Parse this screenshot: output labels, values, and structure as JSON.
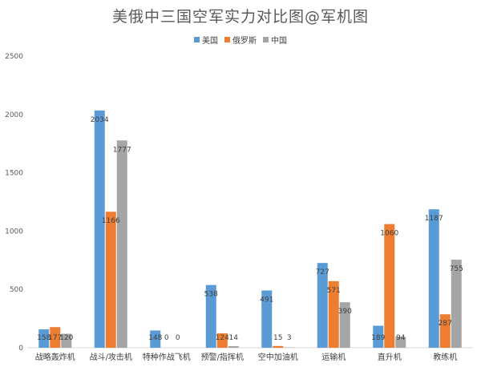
{
  "chart_data": {
    "type": "bar",
    "title": "美俄中三国空军实力对比图@军机图",
    "categories": [
      "战略轰炸机",
      "战斗/攻击机",
      "特种作战飞机",
      "预警/指挥机",
      "空中加油机",
      "运输机",
      "直升机",
      "教练机"
    ],
    "series": [
      {
        "name": "美国",
        "color": "#5b9bd5",
        "values": [
          158,
          2034,
          148,
          538,
          491,
          727,
          189,
          1187
        ]
      },
      {
        "name": "俄罗斯",
        "color": "#ed7d31",
        "values": [
          177,
          1166,
          0,
          124,
          15,
          571,
          1060,
          287
        ]
      },
      {
        "name": "中国",
        "color": "#a5a5a5",
        "values": [
          120,
          1777,
          0,
          14,
          3,
          390,
          94,
          755
        ]
      }
    ],
    "yticks": [
      "0",
      "500",
      "1000",
      "1500",
      "2000",
      "2500"
    ],
    "ylim": [
      0,
      2500
    ],
    "legend_position": "top",
    "grid": false
  }
}
